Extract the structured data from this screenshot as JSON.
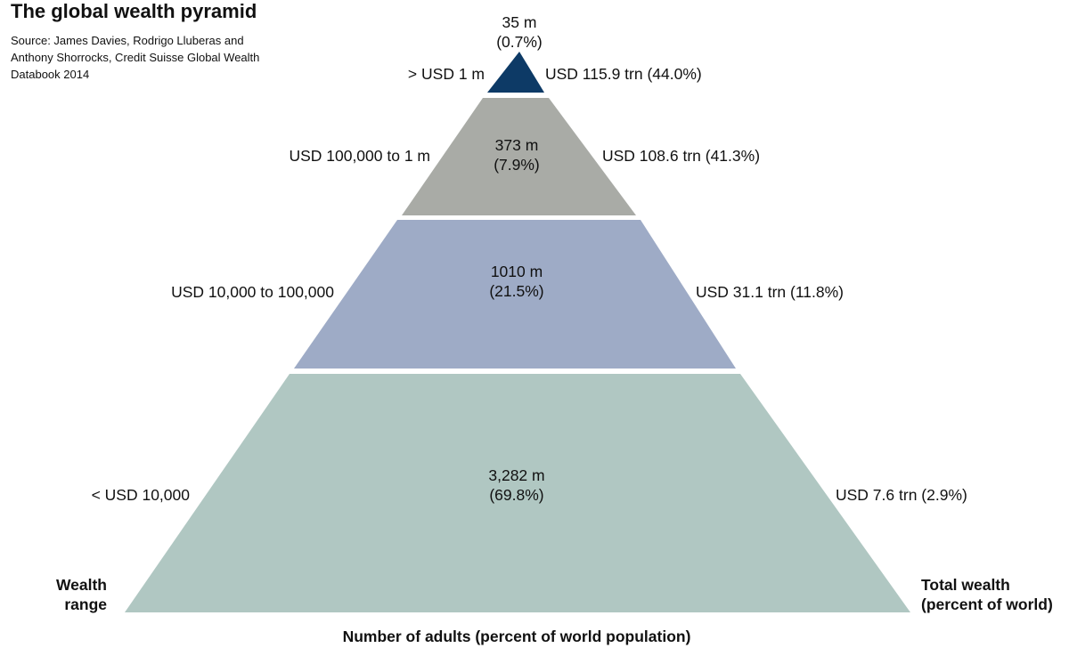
{
  "title": "The global wealth pyramid",
  "source": {
    "lines": [
      "Source: James Davies, Rodrigo Lluberas and",
      "Anthony Shorrocks, Credit Suisse Global Wealth",
      "Databook 2014"
    ]
  },
  "axis_labels": {
    "left": [
      "Wealth",
      "range"
    ],
    "right": [
      "Total wealth",
      "(percent of world)"
    ],
    "bottom": "Number of adults (percent of world population)"
  },
  "tiers": [
    {
      "wealth_range": "> USD 1 m",
      "adults": "35 m",
      "adults_pct": "(0.7%)",
      "total_wealth": "USD 115.9 trn (44.0%)",
      "color": "#0d3a66"
    },
    {
      "wealth_range": "USD 100,000 to 1 m",
      "adults": "373 m",
      "adults_pct": "(7.9%)",
      "total_wealth": "USD 108.6 trn (41.3%)",
      "color": "#a9aba6"
    },
    {
      "wealth_range": "USD 10,000 to 100,000",
      "adults": "1010 m",
      "adults_pct": "(21.5%)",
      "total_wealth": "USD 31.1 trn (11.8%)",
      "color": "#9eabc6"
    },
    {
      "wealth_range": "< USD 10,000",
      "adults": "3,282 m",
      "adults_pct": "(69.8%)",
      "total_wealth": "USD 7.6 trn (2.9%)",
      "color": "#b0c7c2"
    }
  ]
}
